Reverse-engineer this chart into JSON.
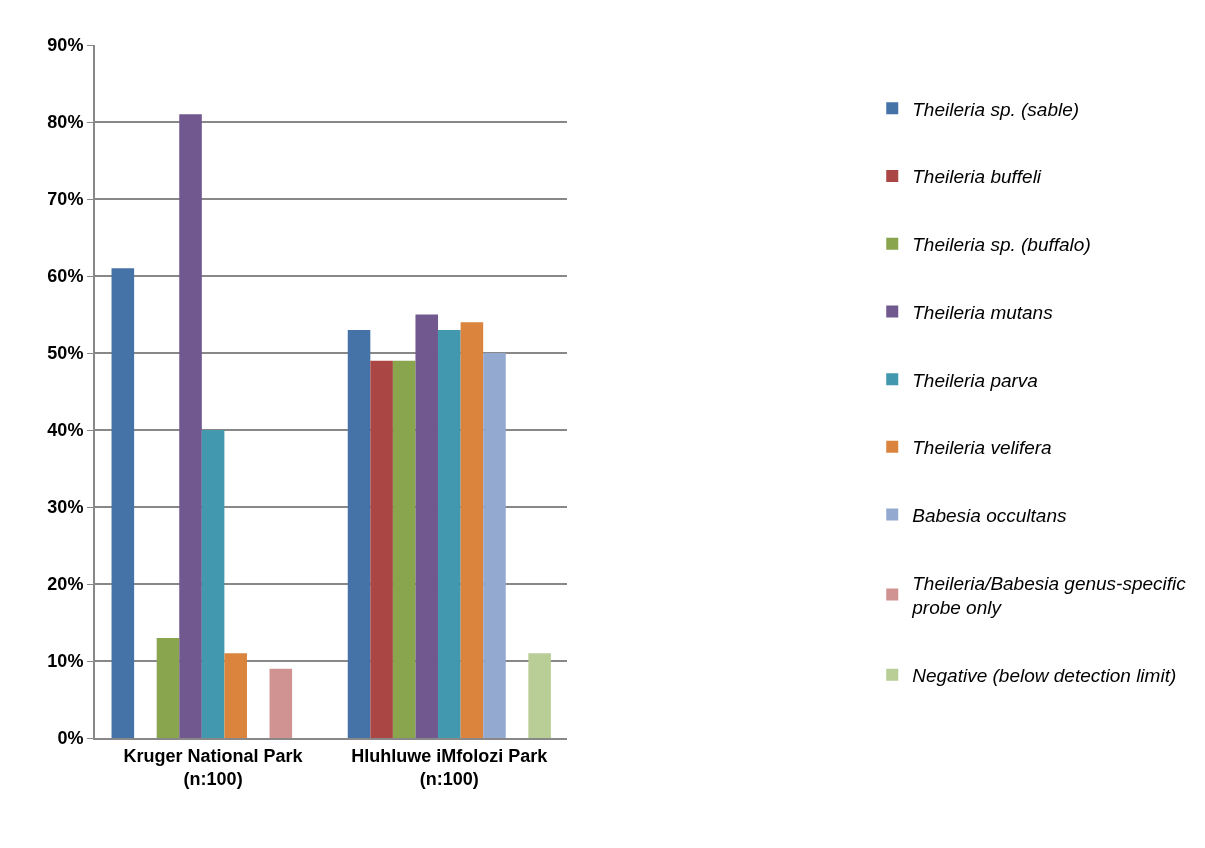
{
  "chart_data": {
    "type": "bar",
    "categories": [
      "Kruger National Park\n(n:100)",
      "Hluhluwe iMfolozi Park\n(n:100)"
    ],
    "series": [
      {
        "name": "Theileria sp. (sable)",
        "color": "#4572a7",
        "values": [
          61,
          53
        ]
      },
      {
        "name": "Theileria buffeli",
        "color": "#aa4643",
        "values": [
          0,
          49
        ]
      },
      {
        "name": "Theileria sp. (buffalo)",
        "color": "#89a54e",
        "values": [
          13,
          49
        ]
      },
      {
        "name": "Theileria mutans",
        "color": "#71588f",
        "values": [
          81,
          55
        ]
      },
      {
        "name": "Theileria parva",
        "color": "#4198af",
        "values": [
          40,
          53
        ]
      },
      {
        "name": "Theileria velifera",
        "color": "#db843d",
        "values": [
          11,
          54
        ]
      },
      {
        "name": "Babesia occultans",
        "color": "#93a9cf",
        "values": [
          0,
          50
        ]
      },
      {
        "name": "Theileria/Babesia genus-specific probe only",
        "color": "#d19392",
        "values": [
          9,
          0
        ]
      },
      {
        "name": "Negative (below detection limit)",
        "color": "#b9cd96",
        "values": [
          0,
          11
        ]
      }
    ],
    "ylim": [
      0,
      90
    ],
    "yticks": [
      {
        "value": 0,
        "label": "0%"
      },
      {
        "value": 10,
        "label": "10%"
      },
      {
        "value": 20,
        "label": "20%"
      },
      {
        "value": 30,
        "label": "30%"
      },
      {
        "value": 40,
        "label": "40%"
      },
      {
        "value": 50,
        "label": "50%"
      },
      {
        "value": 60,
        "label": "60%"
      },
      {
        "value": 70,
        "label": "70%"
      },
      {
        "value": 80,
        "label": "80%"
      },
      {
        "value": 90,
        "label": "90%"
      }
    ],
    "grid": "y",
    "legend": "right"
  }
}
